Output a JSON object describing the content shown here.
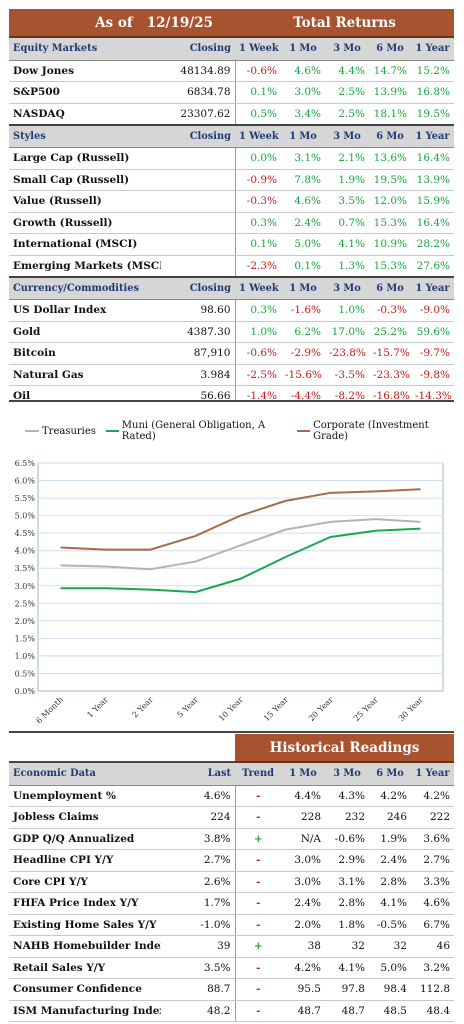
{
  "header": {
    "as_of_label": "As of",
    "date": "12/19/25",
    "title": "Total Returns"
  },
  "periods": [
    "1 Week",
    "1 Mo",
    "3 Mo",
    "6 Mo",
    "1 Year"
  ],
  "closing_label": "Closing",
  "equity": {
    "title": "Equity Markets",
    "rows": [
      {
        "name": "Dow Jones",
        "closing": "48134.89",
        "v": [
          "-0.6%",
          "4.6%",
          "4.4%",
          "14.7%",
          "15.2%"
        ]
      },
      {
        "name": "S&P500",
        "closing": "6834.78",
        "v": [
          "0.1%",
          "3.0%",
          "2.5%",
          "13.9%",
          "16.8%"
        ]
      },
      {
        "name": "NASDAQ",
        "closing": "23307.62",
        "v": [
          "0.5%",
          "3.4%",
          "2.5%",
          "18.1%",
          "19.5%"
        ]
      }
    ]
  },
  "styles": {
    "title": "Styles",
    "rows": [
      {
        "name": "Large Cap (Russell)",
        "closing": "",
        "v": [
          "0.0%",
          "3.1%",
          "2.1%",
          "13.6%",
          "16.4%"
        ]
      },
      {
        "name": "Small Cap (Russell)",
        "closing": "",
        "v": [
          "-0.9%",
          "7.8%",
          "1.9%",
          "19.5%",
          "13.9%"
        ]
      },
      {
        "name": "Value (Russell)",
        "closing": "",
        "v": [
          "-0.3%",
          "4.6%",
          "3.5%",
          "12.0%",
          "15.9%"
        ]
      },
      {
        "name": "Growth (Russell)",
        "closing": "",
        "v": [
          "0.3%",
          "2.4%",
          "0.7%",
          "15.3%",
          "16.4%"
        ]
      },
      {
        "name": "International (MSCI)",
        "closing": "",
        "v": [
          "0.1%",
          "5.0%",
          "4.1%",
          "10.9%",
          "28.2%"
        ]
      },
      {
        "name": "Emerging Markets (MSCI)",
        "closing": "",
        "v": [
          "-2.3%",
          "0.1%",
          "1.3%",
          "15.3%",
          "27.6%"
        ]
      }
    ]
  },
  "currency": {
    "title": "Currency/Commodities",
    "rows": [
      {
        "name": "US Dollar Index",
        "closing": "98.60",
        "v": [
          "0.3%",
          "-1.6%",
          "1.0%",
          "-0.3%",
          "-9.0%"
        ]
      },
      {
        "name": "Gold",
        "closing": "4387.30",
        "v": [
          "1.0%",
          "6.2%",
          "17.0%",
          "25.2%",
          "59.6%"
        ]
      },
      {
        "name": "Bitcoin",
        "closing": "87,910",
        "v": [
          "-0.6%",
          "-2.9%",
          "-23.8%",
          "-15.7%",
          "-9.7%"
        ]
      },
      {
        "name": "Natural Gas",
        "closing": "3.984",
        "v": [
          "-2.5%",
          "-15.6%",
          "-3.5%",
          "-23.3%",
          "-9.8%"
        ]
      },
      {
        "name": "Oil",
        "closing": "56.66",
        "v": [
          "-1.4%",
          "-4.4%",
          "-8.2%",
          "-16.8%",
          "-14.3%"
        ]
      }
    ]
  },
  "chart_data": {
    "type": "line",
    "categories": [
      "6 Month",
      "1 Year",
      "2 Year",
      "5 Year",
      "10 Year",
      "15 Year",
      "20 Year",
      "25 Year",
      "30 Year"
    ],
    "ylim": [
      0,
      6.5
    ],
    "yticks": [
      "0.0%",
      "0.5%",
      "1.0%",
      "1.5%",
      "2.0%",
      "2.5%",
      "3.0%",
      "3.5%",
      "4.0%",
      "4.5%",
      "5.0%",
      "5.5%",
      "6.0%",
      "6.5%"
    ],
    "series": [
      {
        "name": "Treasuries",
        "color": "#b9b2ab",
        "values": [
          3.58,
          3.55,
          3.47,
          3.69,
          4.15,
          4.6,
          4.82,
          4.9,
          4.82
        ]
      },
      {
        "name": "Muni (General Obligation, A Rated)",
        "color": "#1aa84f",
        "values": [
          2.93,
          2.93,
          2.89,
          2.82,
          3.2,
          3.82,
          4.39,
          4.57,
          4.63
        ]
      },
      {
        "name": "Corporate (Investment Grade)",
        "color": "#a66c4a",
        "values": [
          4.09,
          4.03,
          4.03,
          4.42,
          5.0,
          5.42,
          5.65,
          5.69,
          5.75
        ]
      }
    ],
    "grid": true
  },
  "historical": {
    "title": "Historical Readings",
    "section_title": "Economic Data",
    "cols": [
      "Last",
      "Trend",
      "1 Mo",
      "3 Mo",
      "6 Mo",
      "1 Year"
    ],
    "rows": [
      {
        "name": "Unemployment %",
        "last": "4.6%",
        "trend": "-",
        "v": [
          "4.4%",
          "4.3%",
          "4.2%",
          "4.2%"
        ]
      },
      {
        "name": "Jobless Claims",
        "last": "224",
        "trend": "-",
        "v": [
          "228",
          "232",
          "246",
          "222"
        ]
      },
      {
        "name": "GDP Q/Q Annualized",
        "last": "3.8%",
        "trend": "+",
        "v": [
          "N/A",
          "-0.6%",
          "1.9%",
          "3.6%"
        ]
      },
      {
        "name": "Headline CPI Y/Y",
        "last": "2.7%",
        "trend": "-",
        "v": [
          "3.0%",
          "2.9%",
          "2.4%",
          "2.7%"
        ]
      },
      {
        "name": "Core CPI Y/Y",
        "last": "2.6%",
        "trend": "-",
        "v": [
          "3.0%",
          "3.1%",
          "2.8%",
          "3.3%"
        ]
      },
      {
        "name": "FHFA Price Index Y/Y",
        "last": "1.7%",
        "trend": "-",
        "v": [
          "2.4%",
          "2.8%",
          "4.1%",
          "4.6%"
        ]
      },
      {
        "name": "Existing Home Sales Y/Y",
        "last": "-1.0%",
        "trend": "-",
        "v": [
          "2.0%",
          "1.8%",
          "-0.5%",
          "6.7%"
        ]
      },
      {
        "name": "NAHB Homebuilder Index",
        "last": "39",
        "trend": "+",
        "v": [
          "38",
          "32",
          "32",
          "46"
        ]
      },
      {
        "name": "Retail Sales Y/Y",
        "last": "3.5%",
        "trend": "-",
        "v": [
          "4.2%",
          "4.1%",
          "5.0%",
          "3.2%"
        ]
      },
      {
        "name": "Consumer Confidence",
        "last": "88.7",
        "trend": "-",
        "v": [
          "95.5",
          "97.8",
          "98.4",
          "112.8"
        ]
      },
      {
        "name": "ISM Manufacturing Index",
        "last": "48.2",
        "trend": "-",
        "v": [
          "48.7",
          "48.7",
          "48.5",
          "48.4"
        ]
      }
    ]
  }
}
